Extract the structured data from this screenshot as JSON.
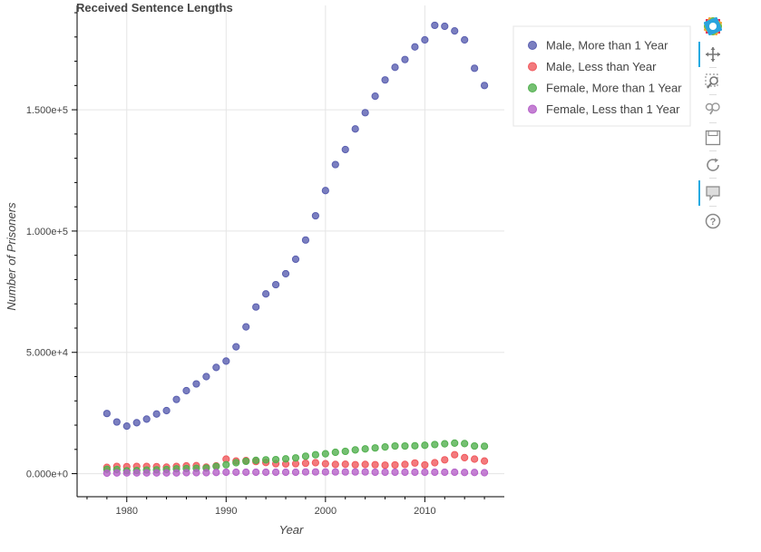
{
  "chart_data": {
    "type": "scatter",
    "title": "Received Sentence Lengths",
    "xlabel": "Year",
    "ylabel": "Number of Prisoners",
    "x_ticks": [
      "1980",
      "1990",
      "2000",
      "2010"
    ],
    "y_ticks": [
      "0.000e+0",
      "5.000e+4",
      "1.000e+5",
      "1.500e+5"
    ],
    "xlim": [
      1975,
      2018
    ],
    "ylim": [
      -9500,
      193000
    ],
    "grid": true,
    "legend_position": "top-right, outside plot",
    "x": [
      1978,
      1979,
      1980,
      1981,
      1982,
      1983,
      1984,
      1985,
      1986,
      1987,
      1988,
      1989,
      1990,
      1991,
      1992,
      1993,
      1994,
      1995,
      1996,
      1997,
      1998,
      1999,
      2000,
      2001,
      2002,
      2003,
      2004,
      2005,
      2006,
      2007,
      2008,
      2009,
      2010,
      2011,
      2012,
      2013,
      2014,
      2015,
      2016
    ],
    "series": [
      {
        "name": "Male, More than 1 Year",
        "color": "#5a5fb0",
        "values": [
          24800,
          21300,
          19600,
          21000,
          22500,
          24600,
          26000,
          30600,
          34200,
          37000,
          40000,
          43800,
          46400,
          52300,
          60500,
          68700,
          74100,
          77900,
          82400,
          88400,
          96300,
          106300,
          116700,
          127400,
          133600,
          142100,
          148800,
          155600,
          162300,
          167500,
          170700,
          175900,
          178800,
          184800,
          184400,
          182500,
          178800,
          167100,
          160000
        ]
      },
      {
        "name": "Male, Less than Year",
        "color": "#f0595d",
        "values": [
          2600,
          3000,
          2900,
          3000,
          3000,
          2900,
          2700,
          3000,
          3200,
          3300,
          2700,
          3200,
          6000,
          5200,
          5400,
          5000,
          4600,
          4100,
          4000,
          4100,
          4300,
          4500,
          4100,
          3800,
          3900,
          3700,
          3800,
          3700,
          3500,
          3600,
          3800,
          4400,
          3600,
          4500,
          5700,
          7800,
          6600,
          6000,
          5200
        ]
      },
      {
        "name": "Female, More than 1 Year",
        "color": "#52b04f",
        "values": [
          1800,
          1700,
          1200,
          1300,
          1500,
          1600,
          1700,
          2000,
          2100,
          2200,
          2300,
          3000,
          3700,
          4500,
          5100,
          5500,
          5700,
          5800,
          6100,
          6500,
          7200,
          7800,
          8200,
          8800,
          9200,
          9800,
          10200,
          10600,
          11000,
          11400,
          11400,
          11500,
          11700,
          12000,
          12300,
          12600,
          12400,
          11400,
          11300
        ]
      },
      {
        "name": "Female, Less than 1 Year",
        "color": "#b560c8",
        "values": [
          200,
          300,
          300,
          300,
          300,
          300,
          300,
          300,
          400,
          400,
          400,
          500,
          600,
          600,
          600,
          600,
          600,
          600,
          600,
          600,
          700,
          700,
          700,
          700,
          700,
          700,
          700,
          600,
          600,
          600,
          600,
          600,
          600,
          600,
          600,
          600,
          500,
          500,
          400
        ]
      }
    ]
  },
  "toolbar": {
    "tools": [
      "bokeh-logo-icon",
      "pan-icon",
      "box-zoom-icon",
      "wheel-zoom-icon",
      "save-icon",
      "reset-icon",
      "hover-icon",
      "help-icon"
    ]
  }
}
